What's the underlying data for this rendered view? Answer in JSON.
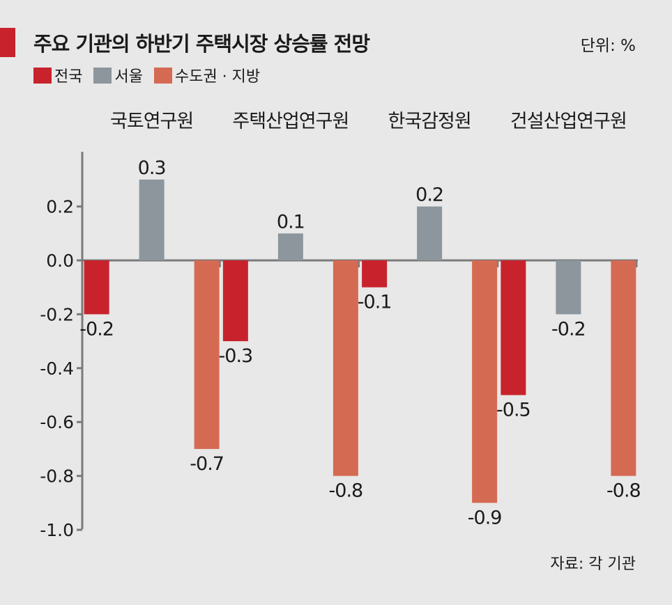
{
  "header": {
    "title": "주요 기관의 하반기 주택시장 상승률 전망",
    "unit": "단위: %"
  },
  "colors": {
    "accent": "#c8232c",
    "national": "#c8232c",
    "seoul": "#8c969c",
    "metro_local": "#d56a52"
  },
  "footer": {
    "source": "자료: 각 기관"
  },
  "chart_data": {
    "type": "bar",
    "categories": [
      "국토연구원",
      "주택산업연구원",
      "한국감정원",
      "건설산업연구원"
    ],
    "series": [
      {
        "name": "전국",
        "values": [
          -0.2,
          -0.3,
          -0.1,
          -0.5
        ],
        "labels": [
          "-0.2",
          "-0.3",
          "-0.1",
          "-0.5"
        ],
        "color": "#c8232c"
      },
      {
        "name": "서울",
        "values": [
          0.3,
          0.1,
          0.2,
          -0.2
        ],
        "labels": [
          "0.3",
          "0.1",
          "0.2",
          "-0.2"
        ],
        "color": "#8c969c"
      },
      {
        "name": "수도권 · 지방",
        "values": [
          -0.7,
          -0.8,
          -0.9,
          -0.8
        ],
        "labels": [
          "-0.7",
          "-0.8",
          "-0.9",
          "-0.8"
        ],
        "color": "#d56a52"
      }
    ],
    "yticks": [
      "0.2",
      "0.0",
      "-0.2",
      "-0.4",
      "-0.6",
      "-0.8",
      "-1.0"
    ],
    "ytick_values": [
      0.2,
      0.0,
      -0.2,
      -0.4,
      -0.6,
      -0.8,
      -1.0
    ],
    "ylim": [
      -1.0,
      0.4
    ],
    "grid": false,
    "legend": "top-left"
  }
}
